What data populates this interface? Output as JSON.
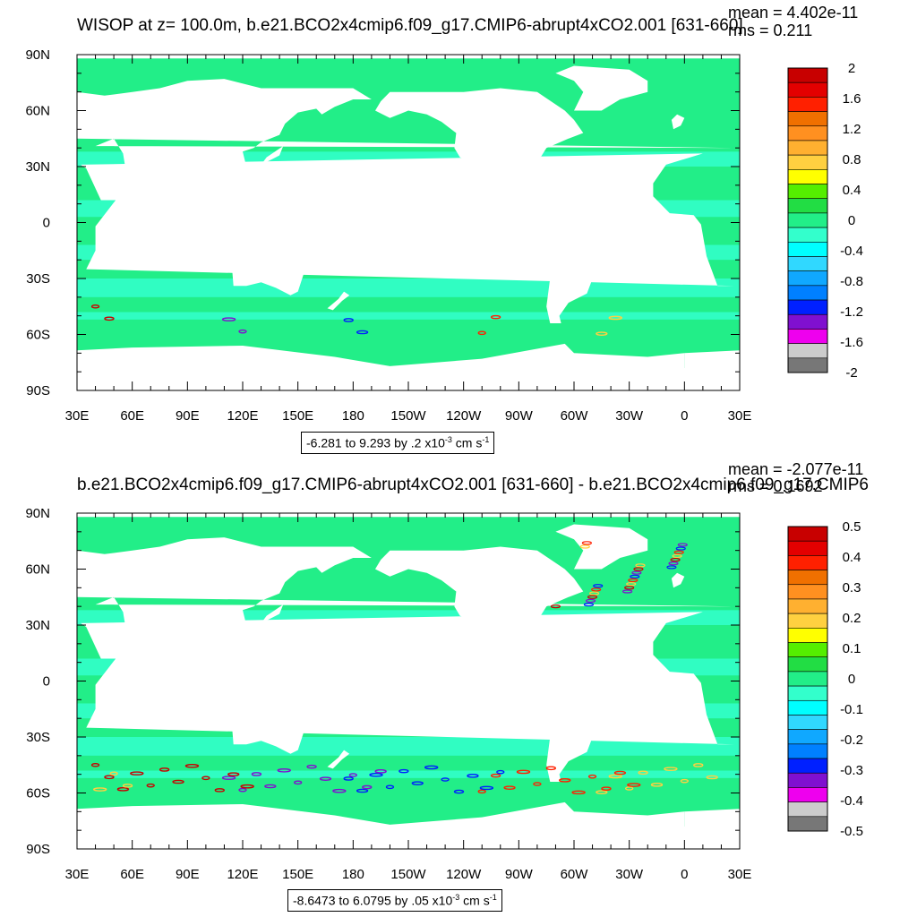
{
  "chart_data": [
    {
      "type": "heatmap",
      "title": "WISOP at z= 100.0m, b.e21.BCO2x4cmip6.f09_g17.CMIP6-abrupt4xCO2.001 [631-660]",
      "stats": {
        "mean": "mean = 4.402e-11",
        "rms": "rms = 0.211"
      },
      "x_ticks": [
        "30E",
        "60E",
        "90E",
        "120E",
        "150E",
        "180",
        "150W",
        "120W",
        "90W",
        "60W",
        "30W",
        "0",
        "30E"
      ],
      "y_ticks": [
        "90N",
        "60N",
        "30N",
        "0",
        "30S",
        "60S",
        "90S"
      ],
      "xlim": [
        30,
        390
      ],
      "ylim": [
        -90,
        90
      ],
      "colorbar_labels": [
        "2",
        "1.6",
        "1.2",
        "0.8",
        "0.4",
        "0",
        "-0.4",
        "-0.8",
        "-1.2",
        "-1.6",
        "-2"
      ],
      "colorbar_colors": [
        "#c80000",
        "#e30000",
        "#ff2000",
        "#f07000",
        "#ff9020",
        "#ffb030",
        "#ffd040",
        "#ffff00",
        "#55ee00",
        "#22dd44",
        "#22ee88",
        "#33ffcc",
        "#00ffff",
        "#30d8ff",
        "#10a8ff",
        "#0080ff",
        "#0020ff",
        "#8010d0",
        "#ee00ee",
        "#cccccc",
        "#777777"
      ],
      "range_text": {
        "main": "-6.281 to 9.293 by .2 x10",
        "exp": "-3",
        "unit": " cm s",
        "uexp": "-1"
      }
    },
    {
      "type": "heatmap",
      "title": "b.e21.BCO2x4cmip6.f09_g17.CMIP6-abrupt4xCO2.001 [631-660] - b.e21.BCO2x4cmip6.f09_g17.CMIP6",
      "stats": {
        "mean": "mean = -2.077e-11",
        "rms": "rms = 0.1692"
      },
      "x_ticks": [
        "30E",
        "60E",
        "90E",
        "120E",
        "150E",
        "180",
        "150W",
        "120W",
        "90W",
        "60W",
        "30W",
        "0",
        "30E"
      ],
      "y_ticks": [
        "90N",
        "60N",
        "30N",
        "0",
        "30S",
        "60S",
        "90S"
      ],
      "xlim": [
        30,
        390
      ],
      "ylim": [
        -90,
        90
      ],
      "colorbar_labels": [
        "0.5",
        "0.4",
        "0.3",
        "0.2",
        "0.1",
        "0",
        "-0.1",
        "-0.2",
        "-0.3",
        "-0.4",
        "-0.5"
      ],
      "colorbar_colors": [
        "#c80000",
        "#e30000",
        "#ff2000",
        "#f07000",
        "#ff9020",
        "#ffb030",
        "#ffd040",
        "#ffff00",
        "#55ee00",
        "#22dd44",
        "#22ee88",
        "#33ffcc",
        "#00ffff",
        "#30d8ff",
        "#10a8ff",
        "#0080ff",
        "#0020ff",
        "#8010d0",
        "#ee00ee",
        "#cccccc",
        "#777777"
      ],
      "range_text": {
        "main": "-8.6473 to 6.0795 by .05 x10",
        "exp": "-3",
        "unit": " cm s",
        "uexp": "-1"
      }
    }
  ],
  "colors": {
    "ocean_fill": "#22ee88",
    "land_fill": "#ffffff",
    "tropical_band": "#33ffcc"
  }
}
